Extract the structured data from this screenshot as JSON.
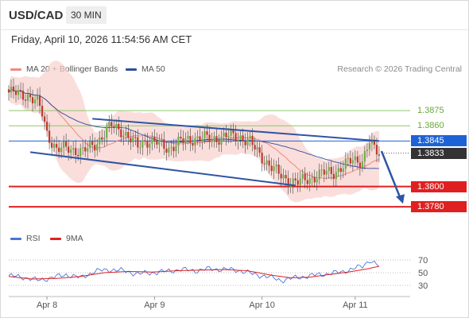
{
  "header": {
    "symbol": "USD/CAD",
    "timeframe": "30 MIN",
    "datetime": "Friday, April 10, 2026 11:54:56 AM CET"
  },
  "legend": {
    "ma20_label": "MA 20 + Bollinger Bands",
    "ma50_label": "MA 50",
    "credit": "Research © 2026 Trading Central"
  },
  "rsi_legend": {
    "rsi_label": "RSI",
    "ma_label": "9MA"
  },
  "colors": {
    "ma20": "#f08a80",
    "ma50": "#2f4f9c",
    "band_fill": "#f8d0cc",
    "bull_candle": "#6fae45",
    "bear_candle": "#c0392b",
    "resistance": "#8fc66a",
    "support": "#e02020",
    "pivot": "#1e63d6",
    "last_price": "#333333",
    "rsi": "#4a74d9",
    "rsi_ma": "#e02020",
    "trend_channel": "#2f55a4"
  },
  "chart_data": {
    "type": "candlestick",
    "y_range": [
      1.3762,
      1.3905
    ],
    "x_labels": [
      "Apr 8",
      "Apr 9",
      "Apr 10",
      "Apr 11"
    ],
    "levels": [
      {
        "value": 1.3875,
        "label": "1.3875",
        "kind": "resistance"
      },
      {
        "value": 1.386,
        "label": "1.3860",
        "kind": "resistance"
      },
      {
        "value": 1.3845,
        "label": "1.3845",
        "kind": "pivot"
      },
      {
        "value": 1.3833,
        "label": "1.3833",
        "kind": "last"
      },
      {
        "value": 1.38,
        "label": "1.3800",
        "kind": "support"
      },
      {
        "value": 1.378,
        "label": "1.3780",
        "kind": "support"
      }
    ],
    "rsi_ticks": [
      70,
      50,
      30
    ],
    "rsi_range": [
      20,
      80
    ],
    "close_path": [
      [
        0,
        1.3893
      ],
      [
        8,
        1.389
      ],
      [
        12,
        1.3883
      ],
      [
        14,
        1.3872
      ],
      [
        16,
        1.3853
      ],
      [
        20,
        1.3836
      ],
      [
        25,
        1.3838
      ],
      [
        31,
        1.3834
      ],
      [
        36,
        1.3842
      ],
      [
        40,
        1.3852
      ],
      [
        43,
        1.386
      ],
      [
        47,
        1.3856
      ],
      [
        51,
        1.3846
      ],
      [
        54,
        1.384
      ],
      [
        57,
        1.3846
      ],
      [
        62,
        1.3843
      ],
      [
        67,
        1.3838
      ],
      [
        72,
        1.3844
      ],
      [
        78,
        1.3848
      ],
      [
        85,
        1.3847
      ],
      [
        92,
        1.385
      ],
      [
        97,
        1.3849
      ],
      [
        101,
        1.3844
      ],
      [
        104,
        1.3834
      ],
      [
        108,
        1.3824
      ],
      [
        113,
        1.3812
      ],
      [
        117,
        1.3806
      ],
      [
        121,
        1.3804
      ],
      [
        126,
        1.3808
      ],
      [
        131,
        1.3813
      ],
      [
        136,
        1.3814
      ],
      [
        140,
        1.382
      ],
      [
        144,
        1.3826
      ],
      [
        148,
        1.3826
      ],
      [
        151,
        1.3844
      ],
      [
        153,
        1.3836
      ],
      [
        155,
        1.3833
      ]
    ],
    "channel_upper": [
      [
        35,
        1.3867
      ],
      [
        155,
        1.3845
      ]
    ],
    "channel_lower": [
      [
        9,
        1.3834
      ],
      [
        120,
        1.3801
      ]
    ],
    "forecast_arrow": [
      [
        156,
        1.3835
      ],
      [
        165,
        1.3783
      ]
    ],
    "rsi_path": [
      [
        0,
        45
      ],
      [
        6,
        43
      ],
      [
        12,
        38
      ],
      [
        18,
        42
      ],
      [
        24,
        47
      ],
      [
        30,
        42
      ],
      [
        36,
        52
      ],
      [
        42,
        55
      ],
      [
        48,
        53
      ],
      [
        54,
        48
      ],
      [
        60,
        50
      ],
      [
        66,
        52
      ],
      [
        72,
        55
      ],
      [
        78,
        53
      ],
      [
        84,
        56
      ],
      [
        90,
        55
      ],
      [
        96,
        54
      ],
      [
        102,
        48
      ],
      [
        108,
        44
      ],
      [
        114,
        38
      ],
      [
        120,
        42
      ],
      [
        126,
        45
      ],
      [
        132,
        48
      ],
      [
        138,
        50
      ],
      [
        144,
        56
      ],
      [
        148,
        60
      ],
      [
        151,
        70
      ],
      [
        155,
        60
      ]
    ],
    "rsi_ma_path": [
      [
        0,
        44
      ],
      [
        10,
        40
      ],
      [
        20,
        41
      ],
      [
        30,
        44
      ],
      [
        40,
        50
      ],
      [
        50,
        52
      ],
      [
        60,
        51
      ],
      [
        70,
        53
      ],
      [
        80,
        54
      ],
      [
        90,
        55
      ],
      [
        100,
        53
      ],
      [
        110,
        46
      ],
      [
        118,
        42
      ],
      [
        126,
        43
      ],
      [
        134,
        47
      ],
      [
        142,
        51
      ],
      [
        150,
        56
      ],
      [
        155,
        60
      ]
    ]
  }
}
